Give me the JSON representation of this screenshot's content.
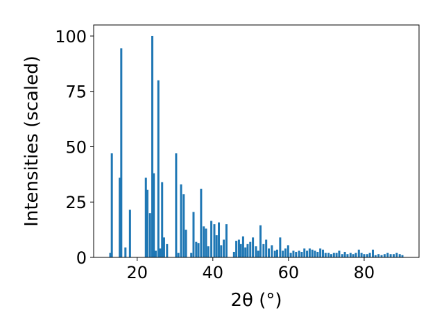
{
  "chart_data": {
    "type": "bar",
    "xlabel": "2θ (°)",
    "ylabel": "Intensities (scaled)",
    "xlim": [
      8.5,
      94.5
    ],
    "ylim": [
      0,
      105
    ],
    "xticks": [
      20,
      40,
      60,
      80
    ],
    "yticks": [
      0,
      25,
      50,
      75,
      100
    ],
    "bar_width": 0.55,
    "bar_color": "#1f77b4",
    "grid": false,
    "legend": "none",
    "x": [
      12.9,
      13.3,
      15.4,
      15.8,
      16.9,
      18.1,
      22.3,
      22.7,
      23.4,
      24.0,
      24.4,
      24.9,
      25.6,
      26.1,
      26.6,
      27.1,
      27.9,
      30.3,
      30.9,
      31.6,
      32.3,
      32.9,
      34.3,
      34.9,
      35.6,
      36.2,
      36.9,
      37.6,
      38.2,
      38.8,
      39.6,
      40.4,
      41.0,
      41.6,
      42.2,
      42.9,
      43.6,
      45.6,
      46.2,
      46.9,
      47.4,
      48.0,
      48.6,
      49.2,
      49.9,
      50.6,
      51.4,
      52.0,
      52.6,
      53.4,
      54.1,
      54.8,
      55.6,
      56.4,
      57.0,
      57.8,
      58.5,
      59.2,
      59.9,
      60.6,
      61.3,
      62.0,
      62.8,
      63.5,
      64.2,
      64.9,
      65.6,
      66.3,
      67.0,
      67.7,
      68.4,
      69.1,
      69.8,
      70.6,
      71.3,
      72.0,
      72.7,
      73.4,
      74.2,
      74.9,
      75.6,
      76.4,
      77.1,
      77.8,
      78.6,
      79.3,
      80.0,
      80.8,
      81.5,
      82.3,
      83.0,
      83.8,
      84.6,
      85.4,
      86.2,
      87.0,
      87.8,
      88.6,
      89.4,
      90.1
    ],
    "values": [
      2,
      47,
      36,
      94.5,
      4.5,
      21.5,
      36,
      30.5,
      20,
      100,
      38,
      3,
      80,
      4,
      34,
      9,
      6,
      47,
      2,
      33,
      28.5,
      12.5,
      2,
      20.5,
      7,
      6.5,
      31,
      14,
      13,
      5,
      16.5,
      15,
      10,
      15.8,
      5.5,
      8,
      15,
      2.5,
      7.5,
      8,
      6,
      9.5,
      4.5,
      6,
      7,
      9,
      5,
      3,
      14.5,
      6,
      8,
      4,
      5.5,
      3,
      3.5,
      9,
      3,
      4,
      5.5,
      2,
      3,
      2.5,
      3,
      2.5,
      4,
      3,
      4,
      3.5,
      3,
      2.5,
      4,
      3.5,
      2,
      2,
      1.5,
      2,
      2,
      3,
      1.5,
      2.5,
      1.5,
      2,
      1.5,
      2,
      3.5,
      2,
      1.5,
      1.5,
      2,
      3.5,
      1,
      1.5,
      1,
      1.5,
      2,
      1.5,
      1.5,
      2,
      1.5,
      1
    ]
  }
}
